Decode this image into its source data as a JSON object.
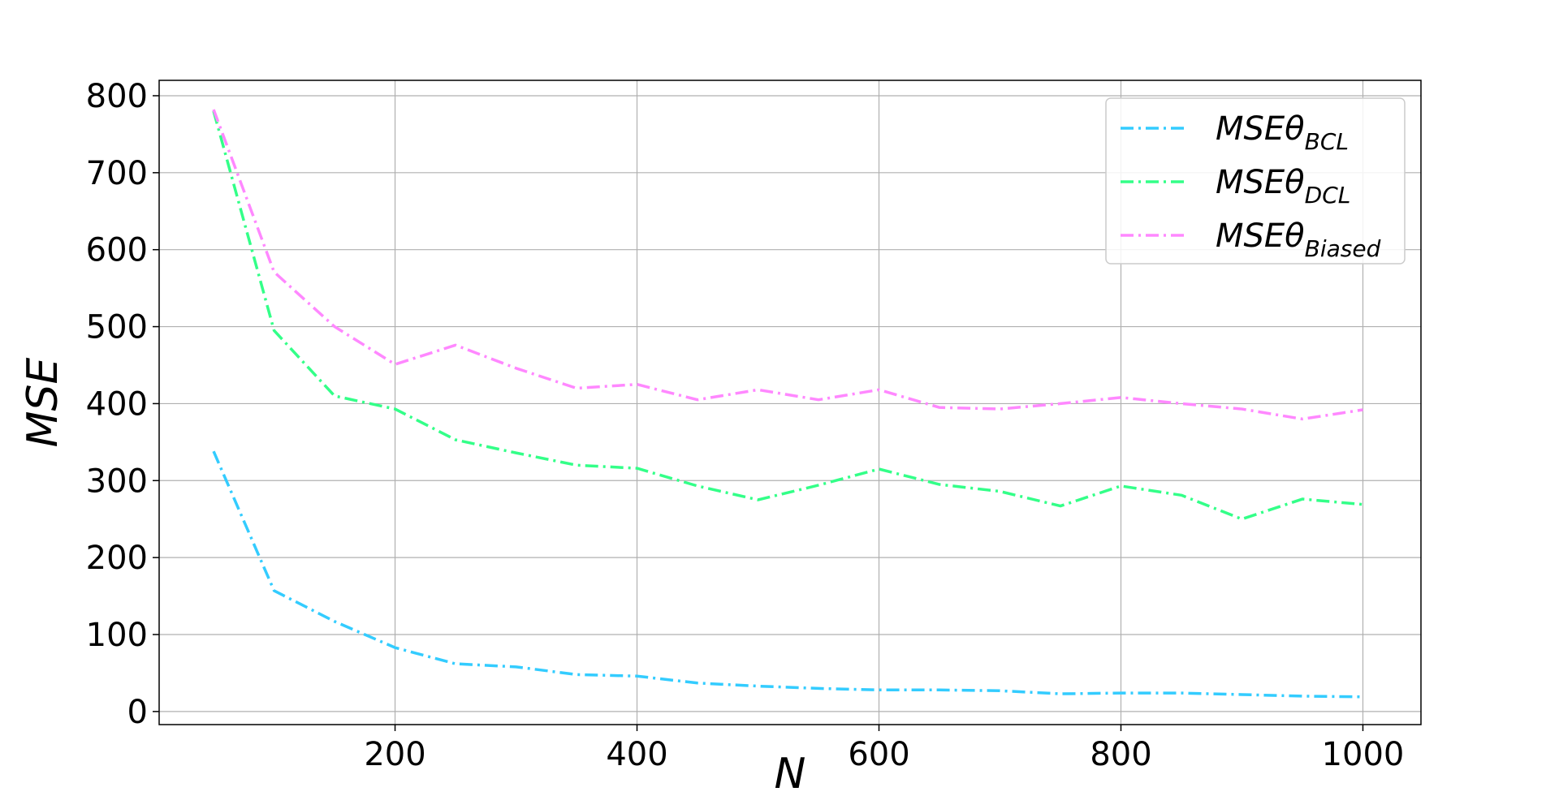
{
  "chart_data": {
    "type": "line",
    "title": "",
    "xlabel": "N",
    "ylabel": "MSE",
    "xlim": [
      5,
      1048
    ],
    "ylim": [
      -17,
      820
    ],
    "xticks": [
      200,
      400,
      600,
      800,
      1000
    ],
    "yticks": [
      0,
      100,
      200,
      300,
      400,
      500,
      600,
      700,
      800
    ],
    "grid": true,
    "legend_position": "top-right",
    "line_style": "dash-dot",
    "x": [
      50,
      100,
      150,
      200,
      250,
      300,
      350,
      400,
      450,
      500,
      550,
      600,
      650,
      700,
      750,
      800,
      850,
      900,
      950,
      1000
    ],
    "series": [
      {
        "name": "MSEθ_BCL",
        "legend_main": "MSEθ",
        "legend_sub": "BCL",
        "color": "#33ccff",
        "values": [
          338,
          157,
          117,
          83,
          62,
          58,
          48,
          46,
          37,
          33,
          30,
          28,
          28,
          27,
          23,
          24,
          24,
          22,
          20,
          19
        ]
      },
      {
        "name": "MSEθ_DCL",
        "legend_main": "MSEθ",
        "legend_sub": "DCL",
        "color": "#33ff88",
        "values": [
          780,
          495,
          410,
          393,
          353,
          336,
          320,
          316,
          293,
          275,
          294,
          315,
          295,
          286,
          267,
          293,
          281,
          250,
          276,
          269
        ]
      },
      {
        "name": "MSEθ_Biased",
        "legend_main": "MSEθ",
        "legend_sub": "Biased",
        "color": "#ff88ff",
        "values": [
          782,
          571,
          500,
          451,
          476,
          446,
          420,
          425,
          405,
          418,
          405,
          418,
          395,
          393,
          400,
          408,
          400,
          393,
          380,
          392
        ]
      }
    ]
  }
}
